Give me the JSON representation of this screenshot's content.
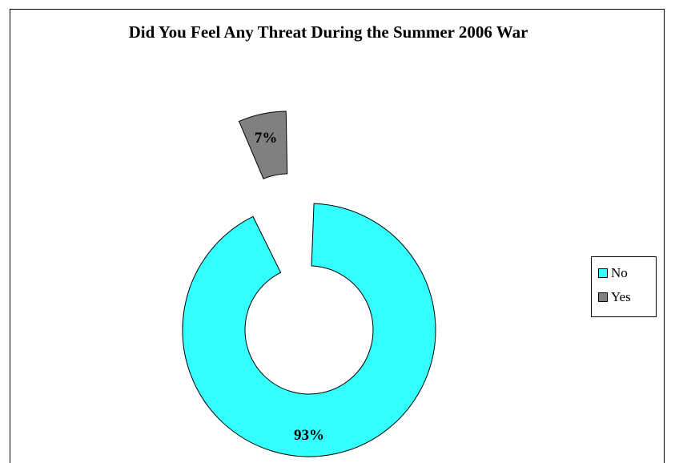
{
  "chart_data": {
    "type": "pie",
    "variant": "doughnut-exploded",
    "title": "Did You Feel Any Threat During the Summer 2006 War",
    "categories": [
      "No",
      "Yes"
    ],
    "values": [
      93,
      7
    ],
    "data_labels": [
      "93%",
      "7%"
    ],
    "colors": [
      "#33ffff",
      "#808080"
    ],
    "exploded": [
      false,
      true
    ],
    "legend": {
      "placement": "right",
      "entries": [
        "No",
        "Yes"
      ]
    }
  }
}
